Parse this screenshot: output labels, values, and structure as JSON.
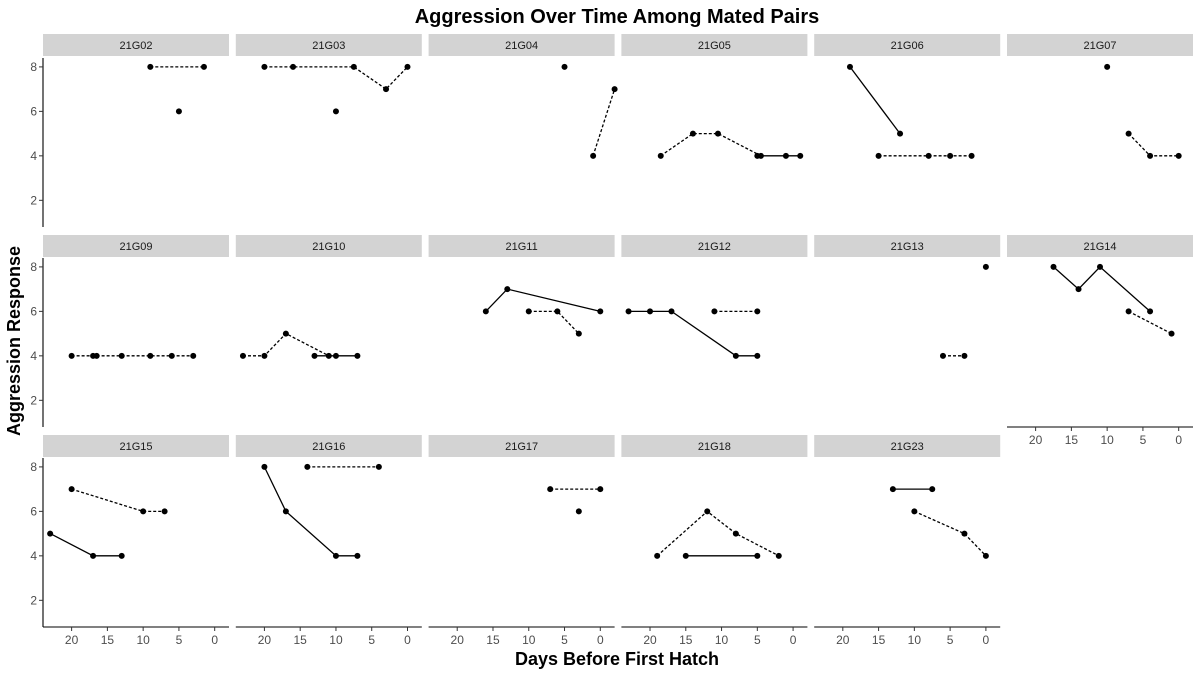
{
  "chart_data": {
    "type": "line",
    "title": "Aggression Over Time Among Mated Pairs",
    "xlabel": "Days Before First Hatch",
    "ylabel": "Aggression Response",
    "x_reversed": true,
    "xlim": [
      24,
      -2
    ],
    "ylim": [
      0.8,
      8.4
    ],
    "x_ticks": [
      20,
      15,
      10,
      5,
      0
    ],
    "y_ticks": [
      2,
      4,
      6,
      8
    ],
    "line_styles": [
      "solid",
      "dashed"
    ],
    "grid": false,
    "panels": [
      {
        "label": "21G02",
        "series": [
          {
            "style": "dashed",
            "points": [
              [
                9,
                8
              ],
              [
                1.5,
                8
              ]
            ]
          },
          {
            "style": "solid",
            "points": [
              [
                5,
                6
              ]
            ]
          }
        ]
      },
      {
        "label": "21G03",
        "series": [
          {
            "style": "dashed",
            "points": [
              [
                20,
                8
              ],
              [
                16,
                8
              ],
              [
                7.5,
                8
              ],
              [
                3,
                7
              ],
              [
                0,
                8
              ]
            ]
          },
          {
            "style": "solid",
            "points": [
              [
                10,
                6
              ]
            ]
          }
        ]
      },
      {
        "label": "21G04",
        "series": [
          {
            "style": "dashed",
            "points": [
              [
                1,
                4
              ],
              [
                -2,
                7
              ]
            ]
          },
          {
            "style": "solid",
            "points": [
              [
                5,
                8
              ]
            ]
          }
        ]
      },
      {
        "label": "21G05",
        "series": [
          {
            "style": "dashed",
            "points": [
              [
                18.5,
                4
              ],
              [
                14,
                5
              ],
              [
                10.5,
                5
              ],
              [
                4.5,
                4
              ]
            ]
          },
          {
            "style": "solid",
            "points": [
              [
                5,
                4
              ],
              [
                1,
                4
              ],
              [
                -1,
                4
              ]
            ]
          }
        ]
      },
      {
        "label": "21G06",
        "series": [
          {
            "style": "solid",
            "points": [
              [
                19,
                8
              ],
              [
                12,
                5
              ]
            ]
          },
          {
            "style": "dashed",
            "points": [
              [
                15,
                4
              ],
              [
                8,
                4
              ],
              [
                5,
                4
              ],
              [
                2,
                4
              ]
            ]
          }
        ]
      },
      {
        "label": "21G07",
        "series": [
          {
            "style": "solid",
            "points": [
              [
                10,
                8
              ]
            ]
          },
          {
            "style": "dashed",
            "points": [
              [
                7,
                5
              ],
              [
                4,
                4
              ],
              [
                0,
                4
              ]
            ]
          }
        ]
      },
      {
        "label": "21G09",
        "series": [
          {
            "style": "dashed",
            "points": [
              [
                20,
                4
              ],
              [
                17,
                4
              ],
              [
                13,
                4
              ],
              [
                9,
                4
              ],
              [
                6,
                4
              ],
              [
                3,
                4
              ]
            ]
          },
          {
            "style": "solid",
            "points": [
              [
                16.5,
                4
              ]
            ]
          }
        ]
      },
      {
        "label": "21G10",
        "series": [
          {
            "style": "dashed",
            "points": [
              [
                23,
                4
              ],
              [
                20,
                4
              ],
              [
                17,
                5
              ],
              [
                11,
                4
              ],
              [
                10,
                4
              ]
            ]
          },
          {
            "style": "solid",
            "points": [
              [
                13,
                4
              ],
              [
                7,
                4
              ]
            ]
          }
        ]
      },
      {
        "label": "21G11",
        "series": [
          {
            "style": "solid",
            "points": [
              [
                16,
                6
              ],
              [
                13,
                7
              ],
              [
                0,
                6
              ]
            ]
          },
          {
            "style": "dashed",
            "points": [
              [
                10,
                6
              ],
              [
                6,
                6
              ],
              [
                3,
                5
              ]
            ]
          }
        ]
      },
      {
        "label": "21G12",
        "series": [
          {
            "style": "solid",
            "points": [
              [
                23,
                6
              ],
              [
                20,
                6
              ],
              [
                17,
                6
              ],
              [
                8,
                4
              ],
              [
                5,
                4
              ]
            ]
          },
          {
            "style": "dashed",
            "points": [
              [
                11,
                6
              ],
              [
                5,
                6
              ]
            ]
          }
        ]
      },
      {
        "label": "21G13",
        "series": [
          {
            "style": "dashed",
            "points": [
              [
                6,
                4
              ],
              [
                3,
                4
              ]
            ]
          },
          {
            "style": "solid",
            "points": [
              [
                0,
                8
              ]
            ]
          }
        ]
      },
      {
        "label": "21G14",
        "series": [
          {
            "style": "solid",
            "points": [
              [
                17.5,
                8
              ],
              [
                14,
                7
              ],
              [
                11,
                8
              ],
              [
                4,
                6
              ]
            ]
          },
          {
            "style": "dashed",
            "points": [
              [
                7,
                6
              ],
              [
                1,
                5
              ]
            ]
          }
        ]
      },
      {
        "label": "21G15",
        "series": [
          {
            "style": "solid",
            "points": [
              [
                23,
                5
              ],
              [
                17,
                4
              ],
              [
                13,
                4
              ]
            ]
          },
          {
            "style": "dashed",
            "points": [
              [
                20,
                7
              ],
              [
                10,
                6
              ],
              [
                7,
                6
              ]
            ]
          }
        ]
      },
      {
        "label": "21G16",
        "series": [
          {
            "style": "solid",
            "points": [
              [
                20,
                8
              ],
              [
                17,
                6
              ],
              [
                10,
                4
              ],
              [
                7,
                4
              ]
            ]
          },
          {
            "style": "dashed",
            "points": [
              [
                14,
                8
              ],
              [
                4,
                8
              ]
            ]
          }
        ]
      },
      {
        "label": "21G17",
        "series": [
          {
            "style": "dashed",
            "points": [
              [
                7,
                7
              ],
              [
                0,
                7
              ]
            ]
          },
          {
            "style": "solid",
            "points": [
              [
                3,
                6
              ]
            ]
          }
        ]
      },
      {
        "label": "21G18",
        "series": [
          {
            "style": "dashed",
            "points": [
              [
                19,
                4
              ],
              [
                12,
                6
              ],
              [
                8,
                5
              ],
              [
                2,
                4
              ]
            ]
          },
          {
            "style": "solid",
            "points": [
              [
                15,
                4
              ],
              [
                5,
                4
              ]
            ]
          }
        ]
      },
      {
        "label": "21G23",
        "series": [
          {
            "style": "solid",
            "points": [
              [
                13,
                7
              ],
              [
                7.5,
                7
              ]
            ]
          },
          {
            "style": "dashed",
            "points": [
              [
                10,
                6
              ],
              [
                3,
                5
              ],
              [
                0,
                4
              ]
            ]
          }
        ]
      }
    ]
  }
}
